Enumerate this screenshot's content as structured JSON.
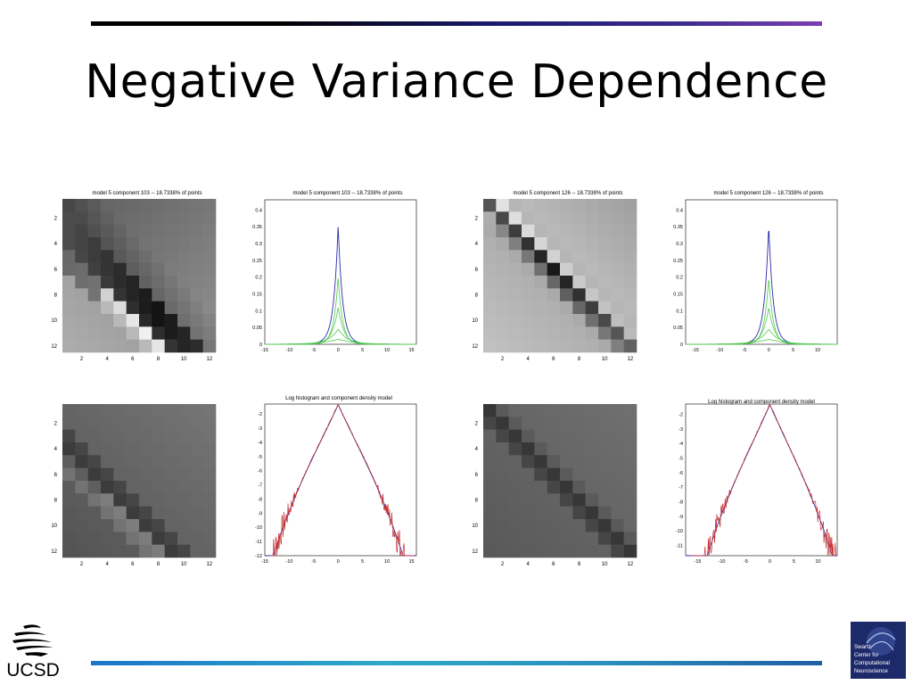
{
  "slide": {
    "title": "Negative Variance Dependence"
  },
  "figures": {
    "density_1": {
      "title": "model 5 component 103 -- 18.7338% of points"
    },
    "matrix_1": {
      "title": "model 5 component 103 -- 18.7338% of points"
    },
    "matrix_2": {
      "title": "model 5 component 126 -- 18.7338% of points"
    },
    "density_2": {
      "title": "model 5 component 126 -- 18.7338% of points"
    },
    "log_1": {
      "title": "Log histogram and component density model"
    },
    "log_2": {
      "title": "Log histogram and component density model"
    }
  },
  "axes": {
    "matrix_ticks": [
      "2",
      "4",
      "6",
      "8",
      "10",
      "12"
    ],
    "density_yticks": [
      "0",
      "0.05",
      "0.1",
      "0.15",
      "0.2",
      "0.25",
      "0.3",
      "0.35",
      "0.4"
    ],
    "density_xticks_1": [
      "-15",
      "-10",
      "-5",
      "0",
      "5",
      "10",
      "15"
    ],
    "density_xticks_2": [
      "-15",
      "-10",
      "-5",
      "0",
      "5",
      "10"
    ],
    "log_yticks": [
      "-2",
      "-3",
      "-4",
      "-5",
      "-6",
      "-7",
      "-8",
      "-9",
      "-10",
      "-11",
      "-12"
    ],
    "log_yticks_2": [
      "-2",
      "-3",
      "-4",
      "-5",
      "-6",
      "-7",
      "-8",
      "-9",
      "-10",
      "-11"
    ]
  },
  "logos": {
    "ucsd": "UCSD",
    "sccn_lines": [
      "Swartz",
      "Center for",
      "Computational",
      "Neuroscience"
    ]
  },
  "colors": {
    "blue_curve": "#2a2aa8",
    "green_curve": "#4fc84f",
    "red_curve": "#c83030",
    "sccn_bg": "#1c2a6a"
  }
}
